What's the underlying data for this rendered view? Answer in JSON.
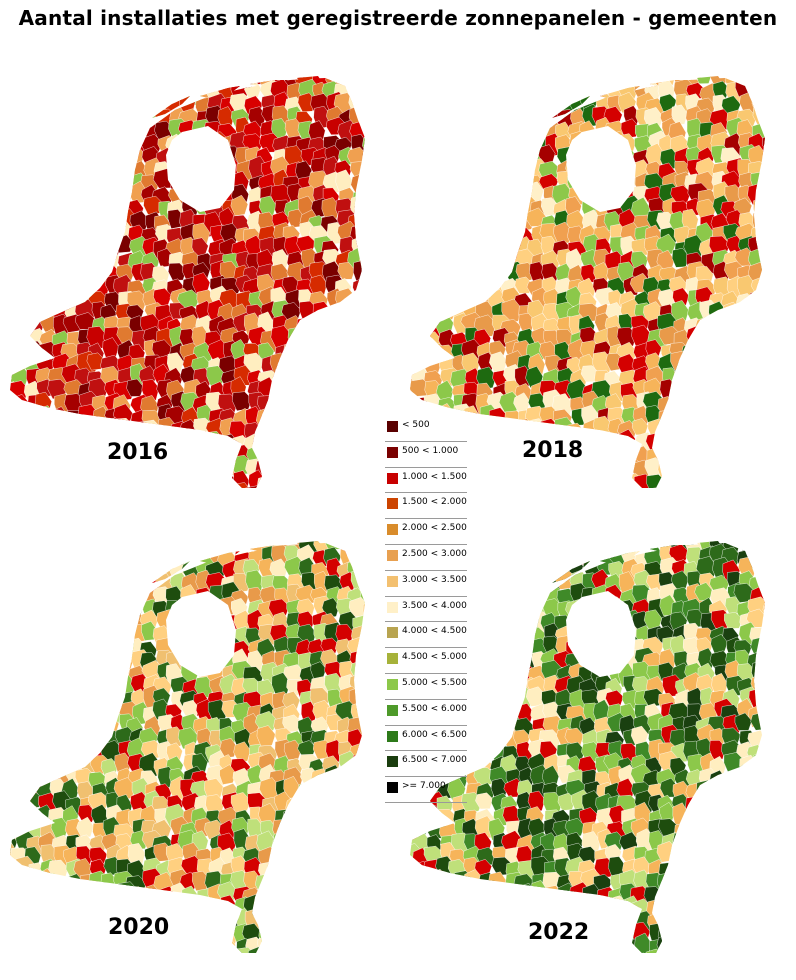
{
  "title": "Aantal installaties met geregistreerde zonnepanelen - gemeenten",
  "maps": [
    {
      "year": "2016",
      "colors": [
        "#a50000",
        "#c80000",
        "#7a0000",
        "#d62b00",
        "#e07a30",
        "#f0a050",
        "#d80000",
        "#c01010",
        "#ffeec0",
        "#8cc84a"
      ]
    },
    {
      "year": "2018",
      "colors": [
        "#f6b45a",
        "#ffd080",
        "#e89a4a",
        "#fff0c8",
        "#d40000",
        "#a50000",
        "#8cc84a",
        "#f0a050",
        "#f9c870",
        "#1e6a10"
      ]
    },
    {
      "year": "2020",
      "colors": [
        "#f6b45a",
        "#ffd080",
        "#2d6a1a",
        "#1e4d0e",
        "#bfe07a",
        "#8cc84a",
        "#ffeec0",
        "#e89a4a",
        "#d40000",
        "#f0c070"
      ]
    },
    {
      "year": "2022",
      "colors": [
        "#1e4d0e",
        "#2d6a1a",
        "#1a4010",
        "#8cc84a",
        "#bfe07a",
        "#f6b45a",
        "#ffd080",
        "#3f8a28",
        "#d40000",
        "#ffeec0"
      ]
    }
  ],
  "legend": [
    {
      "label": "< 500",
      "color": "#5a0000"
    },
    {
      "label": "500 < 1.000",
      "color": "#7a0000"
    },
    {
      "label": "1.000 < 1.500",
      "color": "#c80000"
    },
    {
      "label": "1.500 < 2.000",
      "color": "#cc4400"
    },
    {
      "label": "2.000 < 2.500",
      "color": "#d98c2b"
    },
    {
      "label": "2.500 < 3.000",
      "color": "#e8a050"
    },
    {
      "label": "3.000 < 3.500",
      "color": "#f3c070"
    },
    {
      "label": "3.500 < 4.000",
      "color": "#fff0c8"
    },
    {
      "label": "4.000 < 4.500",
      "color": "#b8a450"
    },
    {
      "label": "4.500 < 5.000",
      "color": "#a6b23a"
    },
    {
      "label": "5.000 < 5.500",
      "color": "#8cc84a"
    },
    {
      "label": "5.500 < 6.000",
      "color": "#4e9a2a"
    },
    {
      "label": "6.000 < 6.500",
      "color": "#2d7a1a"
    },
    {
      "label": "6.500 < 7.000",
      "color": "#1a3d0e"
    },
    {
      "label": ">= 7.000",
      "color": "#000000"
    }
  ]
}
